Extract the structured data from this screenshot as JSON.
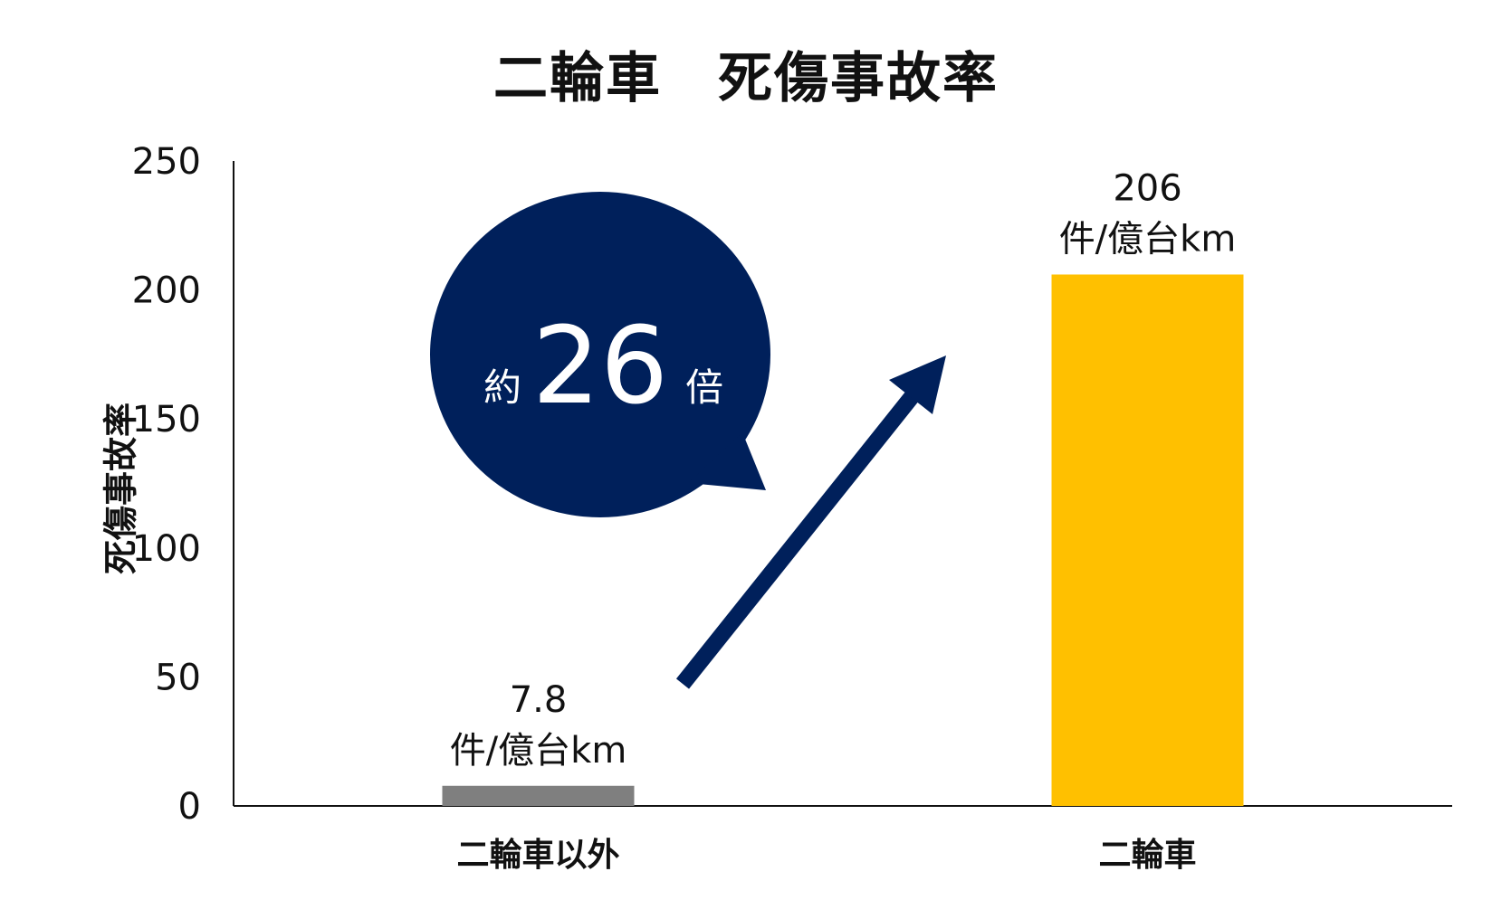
{
  "chart_data": {
    "type": "bar",
    "title": "二輪車　死傷事故率",
    "ylabel": "死傷事故率",
    "categories": [
      "二輪車以外",
      "二輪車"
    ],
    "values": [
      7.8,
      206
    ],
    "value_labels": [
      "7.8",
      "206"
    ],
    "unit_label": "件/億台km",
    "yticks": [
      0,
      50,
      100,
      150,
      200,
      250
    ],
    "ylim": [
      0,
      250
    ],
    "colors": [
      "#7f7f7f",
      "#ffc000"
    ],
    "grid": false,
    "callout": {
      "prefix": "約",
      "number": "26",
      "suffix": "倍",
      "color": "#00205b"
    },
    "arrow_color": "#00205b"
  }
}
